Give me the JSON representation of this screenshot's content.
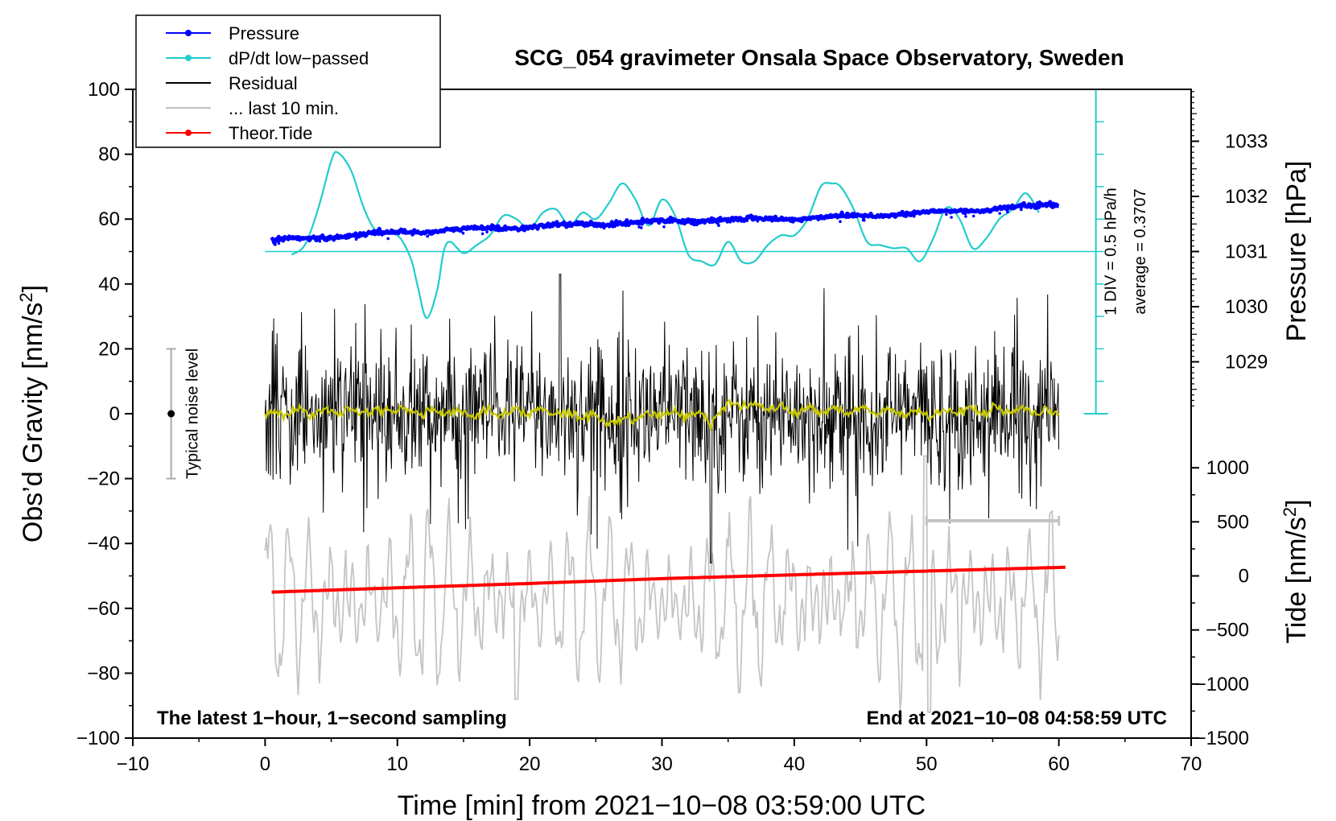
{
  "chart_data": {
    "type": "line",
    "title": "SCG_054 gravimeter Onsala Space Observatory, Sweden",
    "xlabel": "Time [min] from 2021−10−08 03:59:00 UTC",
    "ylabel_left_prefix": "Obs’d Gravity [nm/s",
    "ylabel_left_sup": "2",
    "ylabel_left_suffix": "]",
    "ylabel_right_top": "Pressure [hPa]",
    "ylabel_right_bottom_prefix": "Tide [nm/s",
    "ylabel_right_bottom_sup": "2",
    "ylabel_right_bottom_suffix": "]",
    "xlim": [
      -10,
      70
    ],
    "ylim": [
      -100,
      100
    ],
    "x_ticks": [
      "−10",
      "0",
      "10",
      "20",
      "30",
      "40",
      "50",
      "60",
      "70"
    ],
    "y_ticks": [
      "100",
      "80",
      "60",
      "40",
      "20",
      "0",
      "−20",
      "−40",
      "−60",
      "−80",
      "−100"
    ],
    "pressure_axis": {
      "ticks": [
        "1033",
        "1032",
        "1031",
        "1030",
        "1029"
      ],
      "values": [
        1033,
        1032,
        1031,
        1030,
        1029
      ]
    },
    "tide_axis": {
      "ticks": [
        "1000",
        "500",
        "0",
        "−500",
        "−1000",
        "−1500"
      ],
      "values": [
        1000,
        500,
        0,
        -500,
        -1000,
        -1500
      ]
    },
    "legend": [
      {
        "label": "Pressure",
        "color": "#0000ff",
        "marker": true
      },
      {
        "label": "dP/dt low−passed",
        "color": "#22cccc",
        "marker": true
      },
      {
        "label": "Residual",
        "color": "#000000",
        "marker": false
      },
      {
        "label": "... last 10 min.",
        "color": "#c0c0c0",
        "marker": false
      },
      {
        "label": "Theor.Tide",
        "color": "#ff0000",
        "marker": true
      }
    ],
    "series": [
      {
        "name": "Pressure",
        "unit": "hPa",
        "x": [
          0.5,
          10,
          20,
          30,
          40,
          50,
          60
        ],
        "values": [
          1031.2,
          1031.35,
          1031.45,
          1031.55,
          1031.6,
          1031.7,
          1031.85
        ]
      },
      {
        "name": "dP/dt low−passed",
        "unit": "gravity-axis",
        "x": [
          2,
          3,
          4,
          5,
          5.5,
          6.5,
          7.5,
          8.5,
          10,
          11,
          11.5,
          12.2,
          13,
          13.5,
          14,
          15,
          16,
          17,
          18,
          19,
          20,
          21,
          22,
          23,
          24,
          25,
          26,
          27,
          28,
          29,
          30,
          31,
          32,
          33,
          34,
          35,
          36,
          37,
          38,
          39,
          40,
          41,
          42,
          42.8,
          43.5,
          44.5,
          45.5,
          46.5,
          47.5,
          48.5,
          49.5,
          50.5,
          51.5,
          52.5,
          53.5,
          54.5,
          55.5,
          56.5,
          57.5,
          58.5
        ],
        "values": [
          49,
          52,
          63,
          78,
          80.5,
          75,
          63,
          56,
          55,
          48,
          40,
          29.5,
          38,
          50,
          53,
          49.5,
          52,
          55,
          61,
          60,
          57,
          62,
          63,
          58,
          62,
          60,
          65,
          71,
          66,
          58,
          66,
          61,
          49,
          47,
          46,
          53,
          47,
          47,
          52,
          55,
          55,
          60,
          70,
          71,
          70,
          63,
          53,
          52,
          51,
          51,
          47,
          54,
          63.5,
          60,
          51,
          54,
          60,
          63,
          68,
          62
        ]
      },
      {
        "name": "Residual",
        "unit": "nm/s2",
        "mean": 0,
        "std": 11,
        "min": -46,
        "max": 43
      },
      {
        "name": "Residual low-passed",
        "unit": "nm/s2",
        "x": [
          0,
          5,
          10,
          15,
          20,
          25,
          26,
          27,
          30,
          33,
          33.7,
          34,
          35,
          36,
          40,
          45,
          50,
          55,
          60
        ],
        "values": [
          0,
          1,
          1,
          0,
          1,
          -1,
          -3,
          -2,
          0,
          0,
          -4,
          0,
          2,
          3,
          1,
          1,
          0,
          1,
          0
        ]
      },
      {
        "name": "... last 10 min.",
        "unit": "nm/s2",
        "min": -90,
        "max": -15
      },
      {
        "name": "Theor.Tide",
        "unit": "nm/s2 (tide axis)",
        "x": [
          0.5,
          10,
          20,
          30,
          40,
          50,
          60.5
        ],
        "values": [
          -150,
          -110,
          -70,
          -25,
          10,
          45,
          80
        ]
      }
    ],
    "annotations": {
      "noise_label": "Typical noise level",
      "noise_range": [
        -20,
        20
      ],
      "pressure_scale_label": "1 DIV = 0.5 hPa/h",
      "average_label": "average = 0.3707",
      "dpdt_zero_level": 50,
      "last10_range": [
        50,
        60
      ],
      "bottom_left": "The latest 1−hour, 1−second sampling",
      "bottom_right": "End at 2021−10−08 04:58:59 UTC"
    }
  }
}
